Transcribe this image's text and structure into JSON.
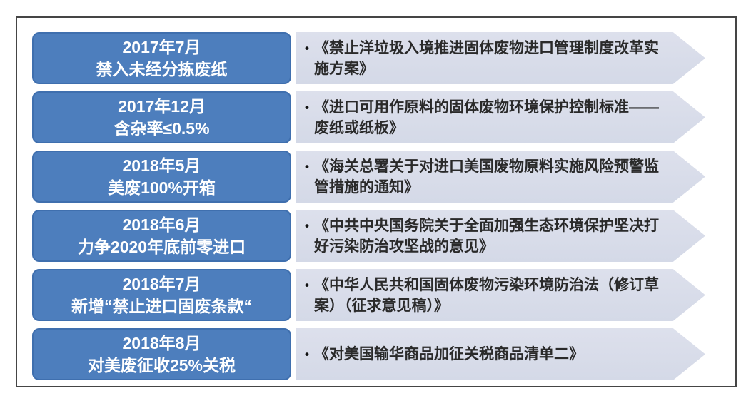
{
  "colors": {
    "milestone_box_fill": "#4d7ebd",
    "milestone_box_border": "#3f6fae",
    "arrow_fill": "#d6dae8",
    "frame_border": "#454545",
    "milestone_text": "#ffffff",
    "document_text": "#2a2a2a"
  },
  "bullet_char": "•",
  "rows": [
    {
      "date": "2017年7月",
      "measure": "禁入未经分拣废纸",
      "document": "《禁止洋垃圾入境推进固体废物进口管理制度改革实施方案》"
    },
    {
      "date": "2017年12月",
      "measure": "含杂率≤0.5%",
      "document": "《进口可用作原料的固体废物环境保护控制标准——废纸或纸板》"
    },
    {
      "date": "2018年5月",
      "measure": "美废100%开箱",
      "document": "《海关总署关于对进口美国废物原料实施风险预警监管措施的通知》"
    },
    {
      "date": "2018年6月",
      "measure": "力争2020年底前零进口",
      "document": "《中共中央国务院关于全面加强生态环境保护坚决打好污染防治攻坚战的意见》"
    },
    {
      "date": "2018年7月",
      "measure": "新增“禁止进口固废条款“",
      "document": "《中华人民共和国固体废物污染环境防治法（修订草案）（征求意见稿）》"
    },
    {
      "date": "2018年8月",
      "measure": "对美废征收25%关税",
      "document": "《对美国输华商品加征关税商品清单二》"
    }
  ]
}
